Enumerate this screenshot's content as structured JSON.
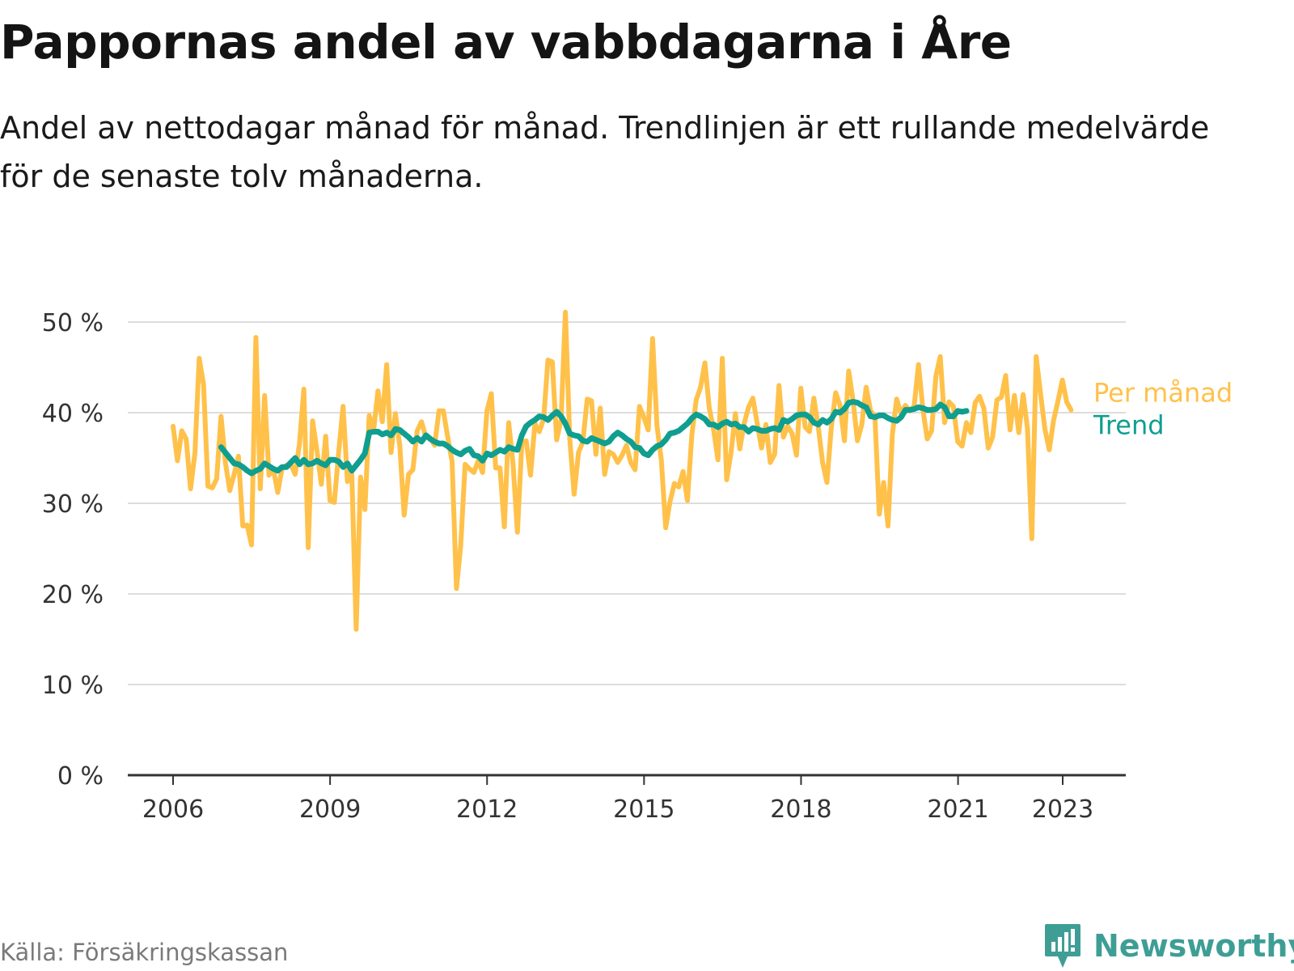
{
  "title": "Pappornas andel av vabbdagarna i Åre",
  "subtitle": "Andel av nettodagar månad för månad. Trendlinjen är ett rullande medelvärde för de senaste tolv månaderna.",
  "source": "Källa: Försäkringskassan",
  "brand": "Newsworthy",
  "colors": {
    "monthly": "#ffc14a",
    "trend": "#0f9e8f",
    "grid": "#dddddd",
    "axis": "#333333",
    "brand": "#3e9e95"
  },
  "chart_data": {
    "type": "line",
    "title": "Pappornas andel av vabbdagarna i Åre",
    "xlabel": "",
    "ylabel": "",
    "x_ticks": [
      "2006",
      "2009",
      "2012",
      "2015",
      "2018",
      "2021",
      "2023"
    ],
    "y_ticks": [
      "0 %",
      "10 %",
      "20 %",
      "30 %",
      "40 %",
      "50 %"
    ],
    "ylim": [
      0,
      50
    ],
    "xlim": [
      2006.0,
      2024.2
    ],
    "grid": true,
    "legend_placement": "right, at line ends",
    "series": [
      {
        "name": "Per månad",
        "x_start": 2006.0,
        "step": 0.0833,
        "values": [
          38.5,
          34.7,
          38,
          37.1,
          31.6,
          35.5,
          46,
          43.1,
          31.9,
          31.7,
          32.7,
          39.6,
          34.5,
          31.4,
          33.2,
          35.2,
          27.5,
          27.6,
          25.4,
          48.3,
          31.6,
          41.9,
          33.1,
          33.8,
          31.2,
          33.8,
          34.2,
          34.3,
          33.2,
          36.6,
          42.6,
          25.1,
          39.1,
          35.8,
          32.1,
          37.4,
          30.3,
          30.1,
          35.7,
          40.7,
          32.4,
          33.2,
          16.1,
          32.9,
          29.3,
          39.7,
          38,
          42.4,
          39,
          45.3,
          35.6,
          39.9,
          36.4,
          28.7,
          33.2,
          33.7,
          38,
          39,
          37.3,
          37.2,
          36.4,
          40.2,
          40.2,
          37.3,
          34.6,
          20.6,
          25.4,
          34.3,
          33.8,
          33.4,
          34.7,
          33.4,
          40.2,
          42.1,
          33.9,
          33.9,
          27.4,
          38.9,
          34.3,
          26.8,
          36.6,
          36.9,
          33.1,
          38.8,
          37.9,
          39.3,
          45.8,
          45.6,
          37,
          39.2,
          51.1,
          37.1,
          31,
          35.6,
          36.8,
          41.5,
          41.3,
          35.4,
          40.5,
          33.2,
          35.7,
          35.4,
          34.5,
          35.3,
          36.4,
          34.5,
          33.7,
          40.7,
          39.5,
          38.1,
          48.2,
          38.6,
          34.8,
          27.3,
          30.2,
          32.2,
          31.8,
          33.5,
          30.3,
          37.5,
          41.4,
          42.8,
          45.5,
          40.5,
          38.1,
          34.8,
          46,
          32.6,
          35.6,
          39.9,
          36,
          38.8,
          40.6,
          41.6,
          38.8,
          36.1,
          38.7,
          34.5,
          35.4,
          43,
          37.3,
          38.5,
          37.7,
          35.3,
          42.7,
          38.4,
          37.9,
          41.6,
          38.5,
          34.5,
          32.3,
          38.4,
          42.2,
          40.8,
          36.9,
          44.6,
          41.3,
          36.9,
          38.7,
          42.8,
          40.2,
          39.6,
          28.8,
          32.3,
          27.5,
          37.6,
          41.5,
          39.9,
          40.8,
          40.2,
          40.7,
          45.3,
          40.4,
          37.1,
          38,
          44.1,
          46.2,
          38.9,
          41.2,
          40.7,
          36.8,
          36.3,
          38.9,
          37.8,
          41.1,
          41.8,
          40.5,
          36.1,
          37.3,
          41.4,
          41.7,
          44.1,
          38.1,
          41.9,
          37.8,
          42,
          38.3,
          26.1,
          46.2,
          42.1,
          38.2,
          35.9,
          39.2,
          41.3,
          43.6,
          41.2,
          40.3
        ]
      },
      {
        "name": "Trend",
        "x_start": 2006.917,
        "step": 0.0833,
        "values": [
          36.2,
          35.6,
          35,
          34.4,
          34.3,
          34,
          33.6,
          33.3,
          33.6,
          33.8,
          34.4,
          34.1,
          33.8,
          33.6,
          34,
          34,
          34.5,
          35,
          34.3,
          34.8,
          34.3,
          34.4,
          34.7,
          34.4,
          34.2,
          34.8,
          34.8,
          34.6,
          34,
          34.4,
          33.6,
          34.2,
          34.8,
          35.5,
          37.8,
          37.9,
          37.9,
          37.6,
          37.8,
          37.5,
          38.2,
          38.1,
          37.7,
          37.3,
          36.8,
          37.2,
          36.8,
          37.5,
          37.1,
          36.8,
          36.6,
          36.6,
          36.3,
          35.9,
          35.6,
          35.4,
          35.8,
          36,
          35.3,
          35.2,
          34.7,
          35.5,
          35.3,
          35.6,
          35.9,
          35.7,
          36.2,
          36,
          35.9,
          37.5,
          38.5,
          38.9,
          39.2,
          39.6,
          39.5,
          39.2,
          39.7,
          40.1,
          39.6,
          38.8,
          37.7,
          37.5,
          37.4,
          36.9,
          36.8,
          37.2,
          37,
          36.8,
          36.6,
          36.8,
          37.4,
          37.8,
          37.5,
          37.1,
          36.8,
          36.2,
          36.1,
          35.5,
          35.3,
          35.9,
          36.3,
          36.5,
          37,
          37.7,
          37.8,
          38,
          38.4,
          38.8,
          39.4,
          39.8,
          39.6,
          39.3,
          38.7,
          38.7,
          38.4,
          38.8,
          39,
          38.7,
          38.8,
          38.4,
          38.4,
          37.9,
          38.3,
          38.2,
          38,
          38,
          38.2,
          38.3,
          38.1,
          39.2,
          39,
          39.3,
          39.7,
          39.8,
          39.8,
          39.5,
          38.9,
          38.7,
          39.2,
          38.9,
          39.3,
          40.1,
          40,
          40.4,
          41.1,
          41.2,
          41.1,
          40.8,
          40.6,
          39.6,
          39.5,
          39.7,
          39.7,
          39.4,
          39.2,
          39.1,
          39.5,
          40.3,
          40.3,
          40.4,
          40.6,
          40.5,
          40.3,
          40.3,
          40.4,
          40.9,
          40.6,
          39.6,
          39.6,
          40.2,
          40.1,
          40.2
        ]
      }
    ]
  }
}
